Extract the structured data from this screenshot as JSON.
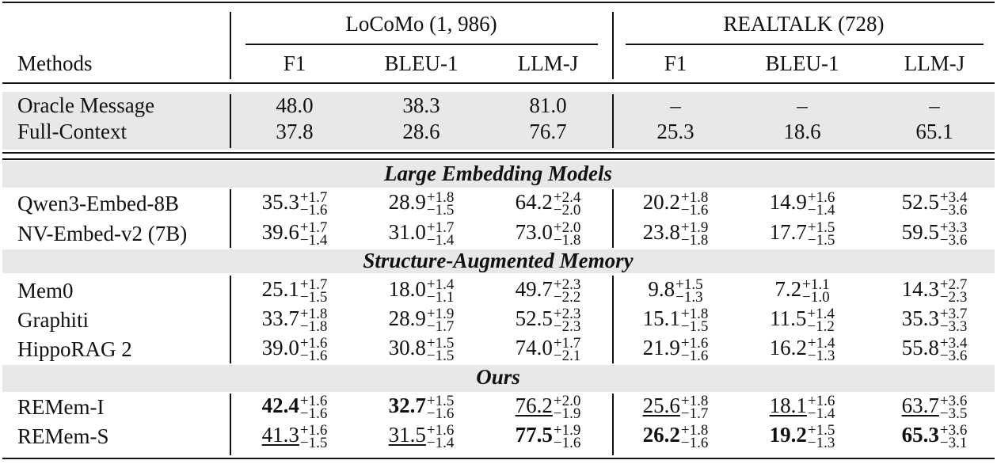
{
  "header": {
    "groups": [
      "LoCoMo (1, 986)",
      "REALTALK (728)"
    ],
    "methods_label": "Methods",
    "metrics": [
      "F1",
      "BLEU-1",
      "LLM-J",
      "F1",
      "BLEU-1",
      "LLM-J"
    ]
  },
  "baselines": [
    {
      "name": "Oracle Message",
      "cells": [
        "48.0",
        "38.3",
        "81.0",
        "–",
        "–",
        "–"
      ]
    },
    {
      "name": "Full-Context",
      "cells": [
        "37.8",
        "28.6",
        "76.7",
        "25.3",
        "18.6",
        "65.1"
      ]
    }
  ],
  "sections": [
    {
      "title": "Large Embedding Models",
      "rows": [
        {
          "name": "Qwen3-Embed-8B",
          "cells": [
            {
              "v": "35.3",
              "hi": "+1.7",
              "lo": "−1.6"
            },
            {
              "v": "28.9",
              "hi": "+1.8",
              "lo": "−1.5"
            },
            {
              "v": "64.2",
              "hi": "+2.4",
              "lo": "−2.0"
            },
            {
              "v": "20.2",
              "hi": "+1.8",
              "lo": "−1.6"
            },
            {
              "v": "14.9",
              "hi": "+1.6",
              "lo": "−1.4"
            },
            {
              "v": "52.5",
              "hi": "+3.4",
              "lo": "−3.6"
            }
          ]
        },
        {
          "name": "NV-Embed-v2 (7B)",
          "cells": [
            {
              "v": "39.6",
              "hi": "+1.7",
              "lo": "−1.4"
            },
            {
              "v": "31.0",
              "hi": "+1.7",
              "lo": "−1.4"
            },
            {
              "v": "73.0",
              "hi": "+2.0",
              "lo": "−1.8"
            },
            {
              "v": "23.8",
              "hi": "+1.9",
              "lo": "−1.8"
            },
            {
              "v": "17.7",
              "hi": "+1.5",
              "lo": "−1.5"
            },
            {
              "v": "59.5",
              "hi": "+3.3",
              "lo": "−3.6"
            }
          ]
        }
      ]
    },
    {
      "title": "Structure-Augmented Memory",
      "rows": [
        {
          "name": "Mem0",
          "cells": [
            {
              "v": "25.1",
              "hi": "+1.7",
              "lo": "−1.5"
            },
            {
              "v": "18.0",
              "hi": "+1.4",
              "lo": "−1.1"
            },
            {
              "v": "49.7",
              "hi": "+2.3",
              "lo": "−2.2"
            },
            {
              "v": "9.8",
              "hi": "+1.5",
              "lo": "−1.3"
            },
            {
              "v": "7.2",
              "hi": "+1.1",
              "lo": "−1.0"
            },
            {
              "v": "14.3",
              "hi": "+2.7",
              "lo": "−2.3"
            }
          ]
        },
        {
          "name": "Graphiti",
          "cells": [
            {
              "v": "33.7",
              "hi": "+1.8",
              "lo": "−1.8"
            },
            {
              "v": "28.9",
              "hi": "+1.9",
              "lo": "−1.7"
            },
            {
              "v": "52.5",
              "hi": "+2.3",
              "lo": "−2.3"
            },
            {
              "v": "15.1",
              "hi": "+1.8",
              "lo": "−1.5"
            },
            {
              "v": "11.5",
              "hi": "+1.4",
              "lo": "−1.2"
            },
            {
              "v": "35.3",
              "hi": "+3.7",
              "lo": "−3.3"
            }
          ]
        },
        {
          "name": "HippoRAG 2",
          "cells": [
            {
              "v": "39.0",
              "hi": "+1.6",
              "lo": "−1.6"
            },
            {
              "v": "30.8",
              "hi": "+1.5",
              "lo": "−1.5"
            },
            {
              "v": "74.0",
              "hi": "+1.7",
              "lo": "−2.1"
            },
            {
              "v": "21.9",
              "hi": "+1.6",
              "lo": "−1.6"
            },
            {
              "v": "16.2",
              "hi": "+1.4",
              "lo": "−1.3"
            },
            {
              "v": "55.8",
              "hi": "+3.4",
              "lo": "−3.6"
            }
          ]
        }
      ]
    },
    {
      "title": "Ours",
      "rows": [
        {
          "name": "REMem-I",
          "cells": [
            {
              "v": "42.4",
              "hi": "+1.6",
              "lo": "−1.6",
              "style": "bold"
            },
            {
              "v": "32.7",
              "hi": "+1.5",
              "lo": "−1.6",
              "style": "bold"
            },
            {
              "v": "76.2",
              "hi": "+2.0",
              "lo": "−1.9",
              "style": "underline"
            },
            {
              "v": "25.6",
              "hi": "+1.8",
              "lo": "−1.7",
              "style": "underline"
            },
            {
              "v": "18.1",
              "hi": "+1.6",
              "lo": "−1.4",
              "style": "underline"
            },
            {
              "v": "63.7",
              "hi": "+3.6",
              "lo": "−3.5",
              "style": "underline"
            }
          ]
        },
        {
          "name": "REMem-S",
          "cells": [
            {
              "v": "41.3",
              "hi": "+1.6",
              "lo": "−1.5",
              "style": "underline"
            },
            {
              "v": "31.5",
              "hi": "+1.6",
              "lo": "−1.4",
              "style": "underline"
            },
            {
              "v": "77.5",
              "hi": "+1.9",
              "lo": "−1.6",
              "style": "bold"
            },
            {
              "v": "26.2",
              "hi": "+1.8",
              "lo": "−1.6",
              "style": "bold"
            },
            {
              "v": "19.2",
              "hi": "+1.5",
              "lo": "−1.3",
              "style": "bold"
            },
            {
              "v": "65.3",
              "hi": "+3.6",
              "lo": "−3.1",
              "style": "bold"
            }
          ]
        }
      ]
    }
  ]
}
